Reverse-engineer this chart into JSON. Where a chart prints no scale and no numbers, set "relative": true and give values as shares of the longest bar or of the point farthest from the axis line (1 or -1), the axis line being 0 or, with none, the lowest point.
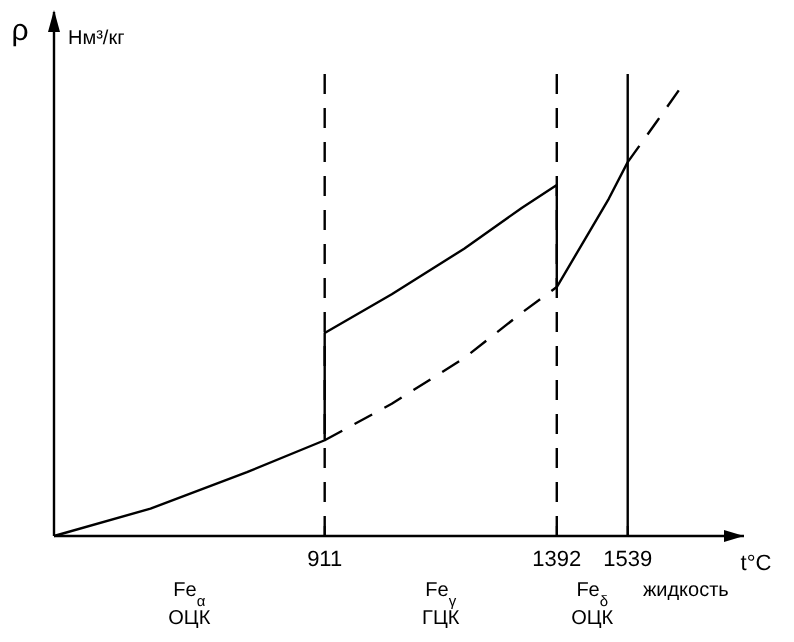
{
  "chart_data": {
    "type": "line",
    "relative": true,
    "ylabel": "ρ",
    "xlabel": "t°C",
    "xlim": [
      350,
      1780
    ],
    "xticks": [
      911,
      1392,
      1539
    ],
    "grid": false,
    "series": [
      {
        "color": "#000000",
        "line_style": "solid",
        "x": [
          350,
          550,
          750,
          911,
          911,
          1050,
          1200,
          1320,
          1392,
          1392,
          1450,
          1500,
          1539
        ],
        "values": [
          0,
          0.06,
          0.14,
          0.21,
          0.445,
          0.53,
          0.63,
          0.72,
          0.77,
          0.546,
          0.65,
          0.74,
          0.82
        ]
      },
      {
        "color": "#000000",
        "line_style": "dashed",
        "x": [
          911,
          1050,
          1200,
          1320,
          1392
        ],
        "values": [
          0.21,
          0.29,
          0.39,
          0.49,
          0.546
        ]
      },
      {
        "color": "#000000",
        "line_style": "dashed",
        "x": [
          1539,
          1600,
          1660
        ],
        "values": [
          0.82,
          0.91,
          1.0
        ]
      }
    ],
    "ref_lines": [
      {
        "axis": "x",
        "value": 911,
        "line_style": "dashed"
      },
      {
        "axis": "x",
        "value": 1392,
        "line_style": "dashed"
      },
      {
        "axis": "x",
        "value": 1539,
        "line_style": "solid"
      }
    ],
    "annotations": [
      "Нм³/кг",
      "Fe$_{α}$ ОЦК",
      "Fe$_{γ}$ ГЦК",
      "Fe$_{δ}$ ОЦК",
      "жидкость"
    ]
  }
}
